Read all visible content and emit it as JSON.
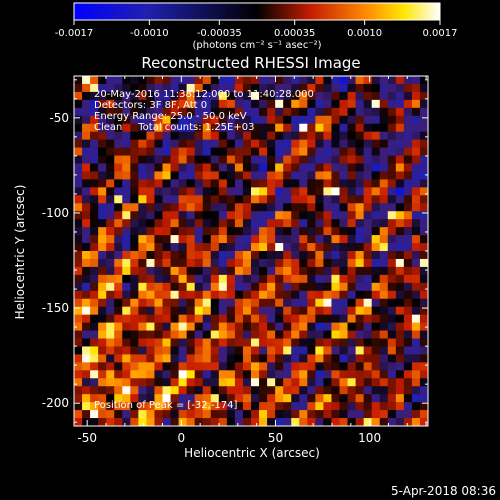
{
  "colors": {
    "background": "#000000",
    "foreground": "#ffffff"
  },
  "colorbar": {
    "ticks": [
      "-0.0017",
      "-0.0010",
      "-0.00035",
      "0.00035",
      "0.0010",
      "0.0017"
    ],
    "tick_values": [
      -0.0017,
      -0.001,
      -0.00035,
      0.00035,
      0.001,
      0.0017
    ],
    "range": [
      -0.0017,
      0.0017
    ],
    "units_label": "(photons cm⁻² s⁻¹ asec⁻²)",
    "colormap": "blue-black-red-yellow-white"
  },
  "chart_data": {
    "type": "heatmap",
    "title": "Reconstructed RHESSI Image",
    "xlabel": "Heliocentric X (arcsec)",
    "ylabel": "Heliocentric Y (arcsec)",
    "xlim": [
      -57,
      131
    ],
    "ylim": [
      -212,
      -28
    ],
    "xticks": [
      -50,
      0,
      50,
      100
    ],
    "yticks": [
      -50,
      -100,
      -150,
      -200
    ],
    "annotations": [
      "20-May-2016 11:38:12.000 to 11:40:28.000",
      "Detectors: 3F 8F, Att 0",
      "Energy Range: 25.0 - 50.0 keV",
      "Clean     Total counts: 1.25E+03"
    ],
    "peak_label": "Position of Peak = [-32,-174]",
    "peak_position": [
      -32,
      -174
    ]
  },
  "footer": {
    "timestamp": "5-Apr-2018 08:36"
  }
}
